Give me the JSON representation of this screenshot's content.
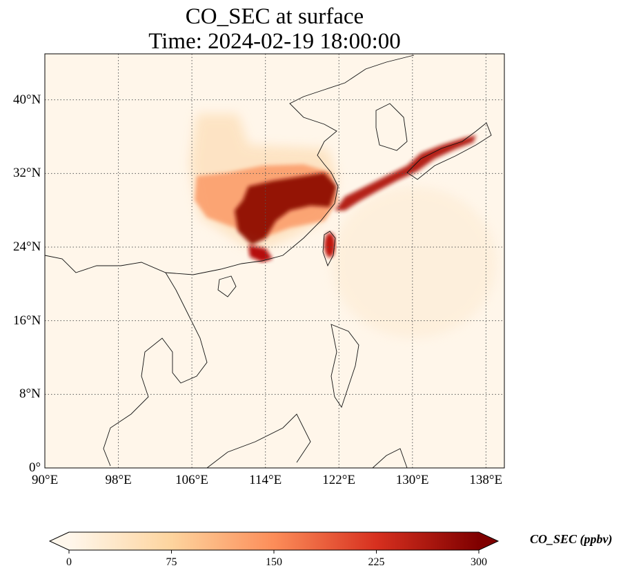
{
  "title": {
    "line1": "CO_SEC at surface",
    "line2": "Time: 2024-02-19 18:00:00"
  },
  "map": {
    "lon_range": [
      90,
      140
    ],
    "lat_range": [
      0,
      45
    ],
    "gridlines": "dotted",
    "lon_ticks": [
      {
        "value": 90,
        "label": "90°E"
      },
      {
        "value": 98,
        "label": "98°E"
      },
      {
        "value": 106,
        "label": "106°E"
      },
      {
        "value": 114,
        "label": "114°E"
      },
      {
        "value": 122,
        "label": "122°E"
      },
      {
        "value": 130,
        "label": "130°E"
      },
      {
        "value": 138,
        "label": "138°E"
      }
    ],
    "lat_ticks": [
      {
        "value": 0,
        "label": "0°"
      },
      {
        "value": 8,
        "label": "8°N"
      },
      {
        "value": 16,
        "label": "16°N"
      },
      {
        "value": 24,
        "label": "24°N"
      },
      {
        "value": 32,
        "label": "32°N"
      },
      {
        "value": 40,
        "label": "40°N"
      }
    ]
  },
  "colorbar": {
    "label": "CO_SEC (ppbv)",
    "colormap": "OrRd",
    "extend": "both",
    "min": 0,
    "max": 300,
    "ticks": [
      {
        "value": 0,
        "label": "0"
      },
      {
        "value": 75,
        "label": "75"
      },
      {
        "value": 150,
        "label": "150"
      },
      {
        "value": 225,
        "label": "225"
      },
      {
        "value": 300,
        "label": "300"
      }
    ],
    "colors": [
      "#fff7ec",
      "#fdd49e",
      "#fc8d59",
      "#d7301f",
      "#7f0000"
    ]
  }
}
